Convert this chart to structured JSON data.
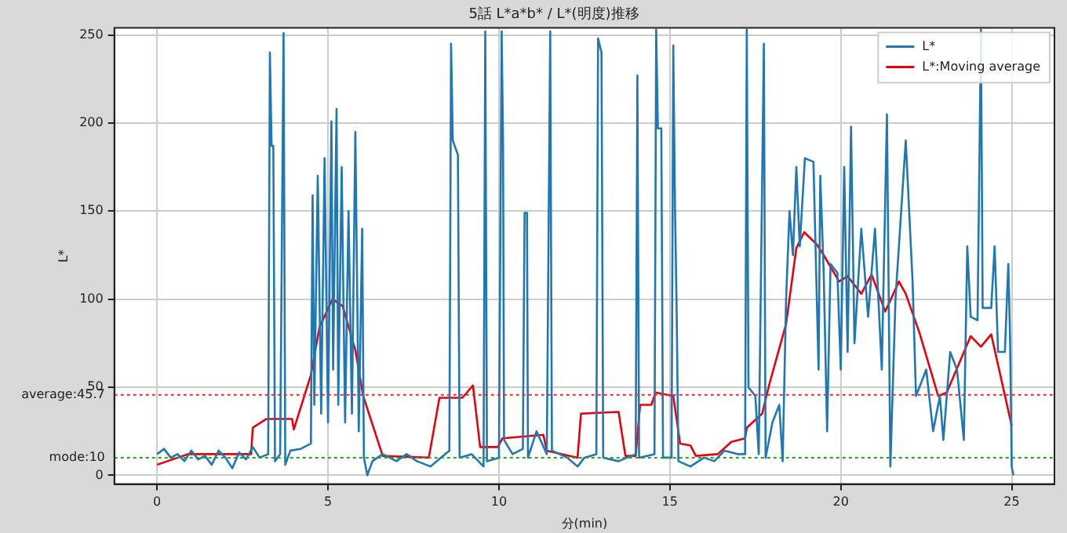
{
  "chart_data": {
    "type": "line",
    "title": "5話 L*a*b* / L*(明度)推移",
    "xlabel": "分(min)",
    "ylabel": "L*",
    "xlim": [
      -1.25,
      26.25
    ],
    "xticks": [
      0,
      5,
      10,
      15,
      20,
      25
    ],
    "ylim": [
      -5,
      254
    ],
    "yticks": [
      0,
      50,
      100,
      150,
      200,
      250
    ],
    "grid": true,
    "legend": "top right",
    "marker": "none",
    "line_style": "solid",
    "ref_lines": [
      {
        "axis": "y",
        "value": 45.7,
        "label": "average:45.7",
        "color": "#e03030",
        "line_style": "dotted"
      },
      {
        "axis": "y",
        "value": 10,
        "label": "mode:10",
        "color": "#2ca02c",
        "line_style": "dotted"
      }
    ],
    "series": [
      {
        "name": "L*",
        "color": "#1f77b4",
        "x": [
          0,
          0.2,
          0.4,
          0.6,
          0.8,
          1.0,
          1.2,
          1.4,
          1.6,
          1.8,
          2.0,
          2.2,
          2.4,
          2.6,
          2.8,
          3.0,
          3.25,
          3.3,
          3.35,
          3.4,
          3.45,
          3.6,
          3.7,
          3.75,
          3.9,
          4.2,
          4.5,
          4.55,
          4.6,
          4.7,
          4.8,
          4.9,
          5.0,
          5.1,
          5.15,
          5.25,
          5.3,
          5.4,
          5.5,
          5.6,
          5.7,
          5.8,
          5.9,
          6.0,
          6.05,
          6.15,
          6.3,
          6.6,
          7.0,
          7.3,
          7.6,
          8.0,
          8.3,
          8.55,
          8.6,
          8.65,
          8.8,
          8.85,
          9.2,
          9.55,
          9.6,
          9.65,
          10.0,
          10.08,
          10.12,
          10.15,
          10.4,
          10.7,
          10.75,
          10.82,
          10.85,
          11.1,
          11.4,
          11.5,
          11.55,
          12.0,
          12.3,
          12.5,
          12.85,
          12.9,
          13.0,
          13.05,
          13.5,
          14.0,
          14.05,
          14.1,
          14.55,
          14.6,
          14.65,
          14.75,
          14.8,
          15.05,
          15.1,
          15.15,
          15.2,
          15.25,
          15.6,
          16.0,
          16.3,
          16.6,
          17.0,
          17.2,
          17.25,
          17.3,
          17.5,
          17.6,
          17.75,
          17.8,
          18.0,
          18.2,
          18.3,
          18.4,
          18.5,
          18.6,
          18.7,
          18.8,
          18.95,
          19.2,
          19.35,
          19.4,
          19.5,
          19.6,
          19.7,
          19.9,
          20.0,
          20.1,
          20.2,
          20.3,
          20.4,
          20.6,
          20.8,
          21.0,
          21.2,
          21.35,
          21.45,
          21.6,
          21.9,
          22.1,
          22.2,
          22.5,
          22.7,
          22.9,
          23.0,
          23.2,
          23.4,
          23.6,
          23.7,
          23.8,
          24.0,
          24.1,
          24.15,
          24.4,
          24.5,
          24.6,
          24.8,
          24.9,
          24.95,
          25.0,
          25.05
        ],
        "values": [
          12,
          15,
          10,
          12,
          8,
          14,
          9,
          11,
          6,
          14,
          10,
          4,
          13,
          9,
          16,
          10,
          12,
          240,
          187,
          187,
          8,
          12,
          251,
          6,
          14,
          15,
          18,
          159,
          40,
          170,
          35,
          180,
          30,
          201,
          60,
          208,
          40,
          175,
          30,
          150,
          35,
          195,
          25,
          140,
          10,
          0,
          8,
          12,
          8,
          12,
          8,
          5,
          10,
          14,
          245,
          190,
          182,
          10,
          12,
          5,
          252,
          8,
          10,
          252,
          190,
          20,
          12,
          15,
          149,
          149,
          10,
          25,
          12,
          252,
          14,
          10,
          5,
          10,
          12,
          248,
          240,
          10,
          8,
          12,
          227,
          10,
          12,
          253,
          197,
          197,
          10,
          10,
          244,
          153,
          92,
          8,
          5,
          10,
          8,
          14,
          12,
          12,
          253,
          50,
          45,
          12,
          245,
          10,
          30,
          40,
          8,
          100,
          150,
          125,
          175,
          130,
          180,
          178,
          60,
          170,
          115,
          25,
          120,
          115,
          60,
          175,
          70,
          198,
          75,
          140,
          90,
          140,
          60,
          205,
          5,
          100,
          190,
          110,
          45,
          60,
          25,
          45,
          20,
          70,
          60,
          20,
          130,
          90,
          88,
          253,
          95,
          95,
          130,
          70,
          70,
          120,
          80,
          5,
          0
        ]
      },
      {
        "name": "L*:Moving average",
        "color": "#e8000b",
        "x": [
          0,
          0.9,
          2.75,
          2.8,
          3.2,
          3.95,
          4.0,
          4.5,
          4.75,
          5.13,
          5.43,
          5.8,
          6.03,
          6.6,
          7.95,
          8.26,
          8.93,
          9.24,
          9.45,
          9.97,
          10.1,
          11.3,
          11.4,
          12.3,
          12.4,
          13.5,
          13.7,
          14.0,
          14.13,
          14.46,
          14.58,
          15.1,
          15.3,
          15.6,
          15.76,
          16.4,
          16.8,
          17.2,
          17.25,
          17.7,
          17.9,
          18.4,
          18.7,
          18.93,
          19.3,
          19.5,
          19.95,
          20.2,
          20.6,
          20.9,
          21.3,
          21.7,
          21.9,
          22.3,
          22.85,
          23.1,
          23.8,
          24.1,
          24.4,
          25.0
        ],
        "values": [
          6,
          12,
          12,
          27,
          32,
          32,
          26,
          57,
          84,
          100,
          96,
          71,
          45,
          11,
          10,
          44,
          44,
          51,
          16,
          16,
          21,
          23,
          14,
          10,
          35,
          36,
          11,
          11,
          40,
          40,
          47,
          45,
          18,
          17,
          11,
          12,
          19,
          21,
          27,
          35,
          51,
          86,
          129,
          138,
          131,
          125,
          110,
          113,
          103,
          114,
          93,
          110,
          103,
          81,
          45,
          47,
          79,
          73,
          80,
          28
        ]
      }
    ]
  }
}
